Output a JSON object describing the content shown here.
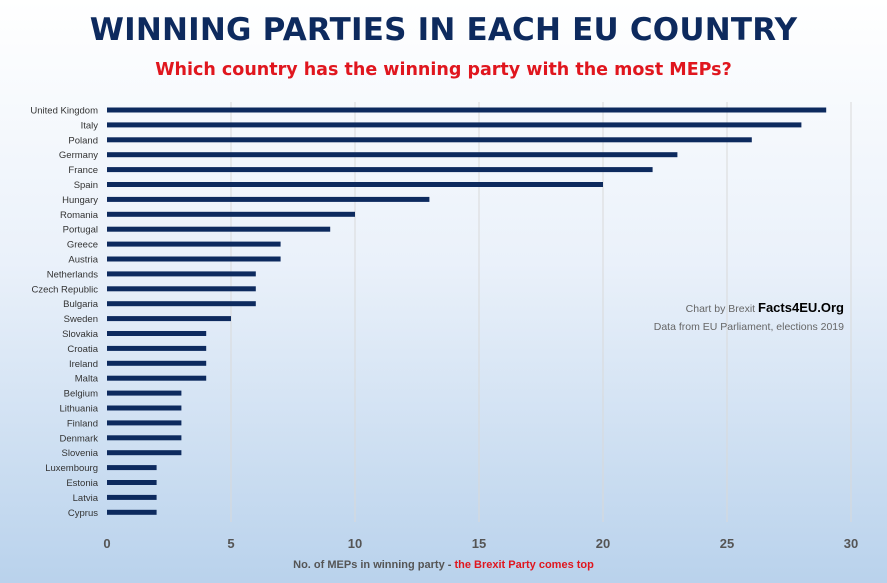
{
  "title": "WINNING PARTIES IN EACH EU COUNTRY",
  "subtitle": "Which country has the winning party with the most MEPs?",
  "credit": {
    "prefix": "Chart by Brexit",
    "brand": "Facts4EU.Org",
    "source": "Data from EU Parliament, elections 2019"
  },
  "xlabel": {
    "main": "No. of MEPs in winning party - ",
    "accent": "the Brexit Party comes top"
  },
  "colors": {
    "bar": "#0d2a5e",
    "title": "#0d2a5e",
    "accent": "#e0161e",
    "grid": "#d9d9d9"
  },
  "chart_data": {
    "type": "bar",
    "orientation": "horizontal",
    "categories": [
      "United Kingdom",
      "Italy",
      "Poland",
      "Germany",
      "France",
      "Spain",
      "Hungary",
      "Romania",
      "Portugal",
      "Greece",
      "Austria",
      "Netherlands",
      "Czech Republic",
      "Bulgaria",
      "Sweden",
      "Slovakia",
      "Croatia",
      "Ireland",
      "Malta",
      "Belgium",
      "Lithuania",
      "Finland",
      "Denmark",
      "Slovenia",
      "Luxembourg",
      "Estonia",
      "Latvia",
      "Cyprus"
    ],
    "values": [
      29,
      28,
      26,
      23,
      22,
      20,
      13,
      10,
      9,
      7,
      7,
      6,
      6,
      6,
      5,
      4,
      4,
      4,
      4,
      3,
      3,
      3,
      3,
      3,
      2,
      2,
      2,
      2
    ],
    "xlim": [
      0,
      30
    ],
    "xticks": [
      0,
      5,
      10,
      15,
      20,
      25,
      30
    ],
    "grid": true
  }
}
